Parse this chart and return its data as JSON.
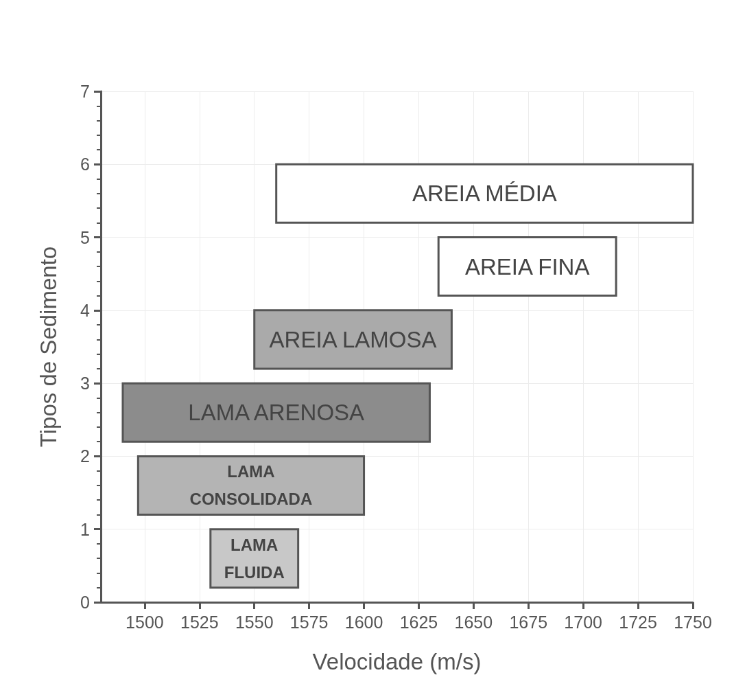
{
  "chart_data": {
    "type": "bar",
    "orientation": "horizontal",
    "xlabel": "Velocidade (m/s)",
    "ylabel": "Tipos de Sedimento",
    "x": [
      0.6,
      1.6,
      2.6,
      3.6,
      4.6,
      5.6
    ],
    "base": [
      1530,
      1497,
      1490,
      1550,
      1634,
      1560
    ],
    "values": [
      40,
      103,
      140,
      90,
      81,
      190
    ],
    "colors": [
      "#c8c8c8",
      "#b4b4b4",
      "#8c8c8c",
      "#aaaaaa",
      "#ffffff",
      "#ffffff"
    ],
    "xlim": [
      1480,
      1750
    ],
    "xticks": [
      1500,
      1525,
      1550,
      1575,
      1600,
      1625,
      1650,
      1675,
      1700,
      1725,
      1750
    ],
    "ylim": [
      0,
      7
    ],
    "yticks": [
      0,
      1,
      2,
      3,
      4,
      5,
      6,
      7
    ],
    "grid": true,
    "value_labels": [
      "LAMA\nFLUIDA",
      "LAMA\nCONSOLIDADA",
      "LAMA ARENOSA",
      "AREIA LAMOSA",
      "AREIA FINA",
      "AREIA MÉDIA"
    ]
  }
}
